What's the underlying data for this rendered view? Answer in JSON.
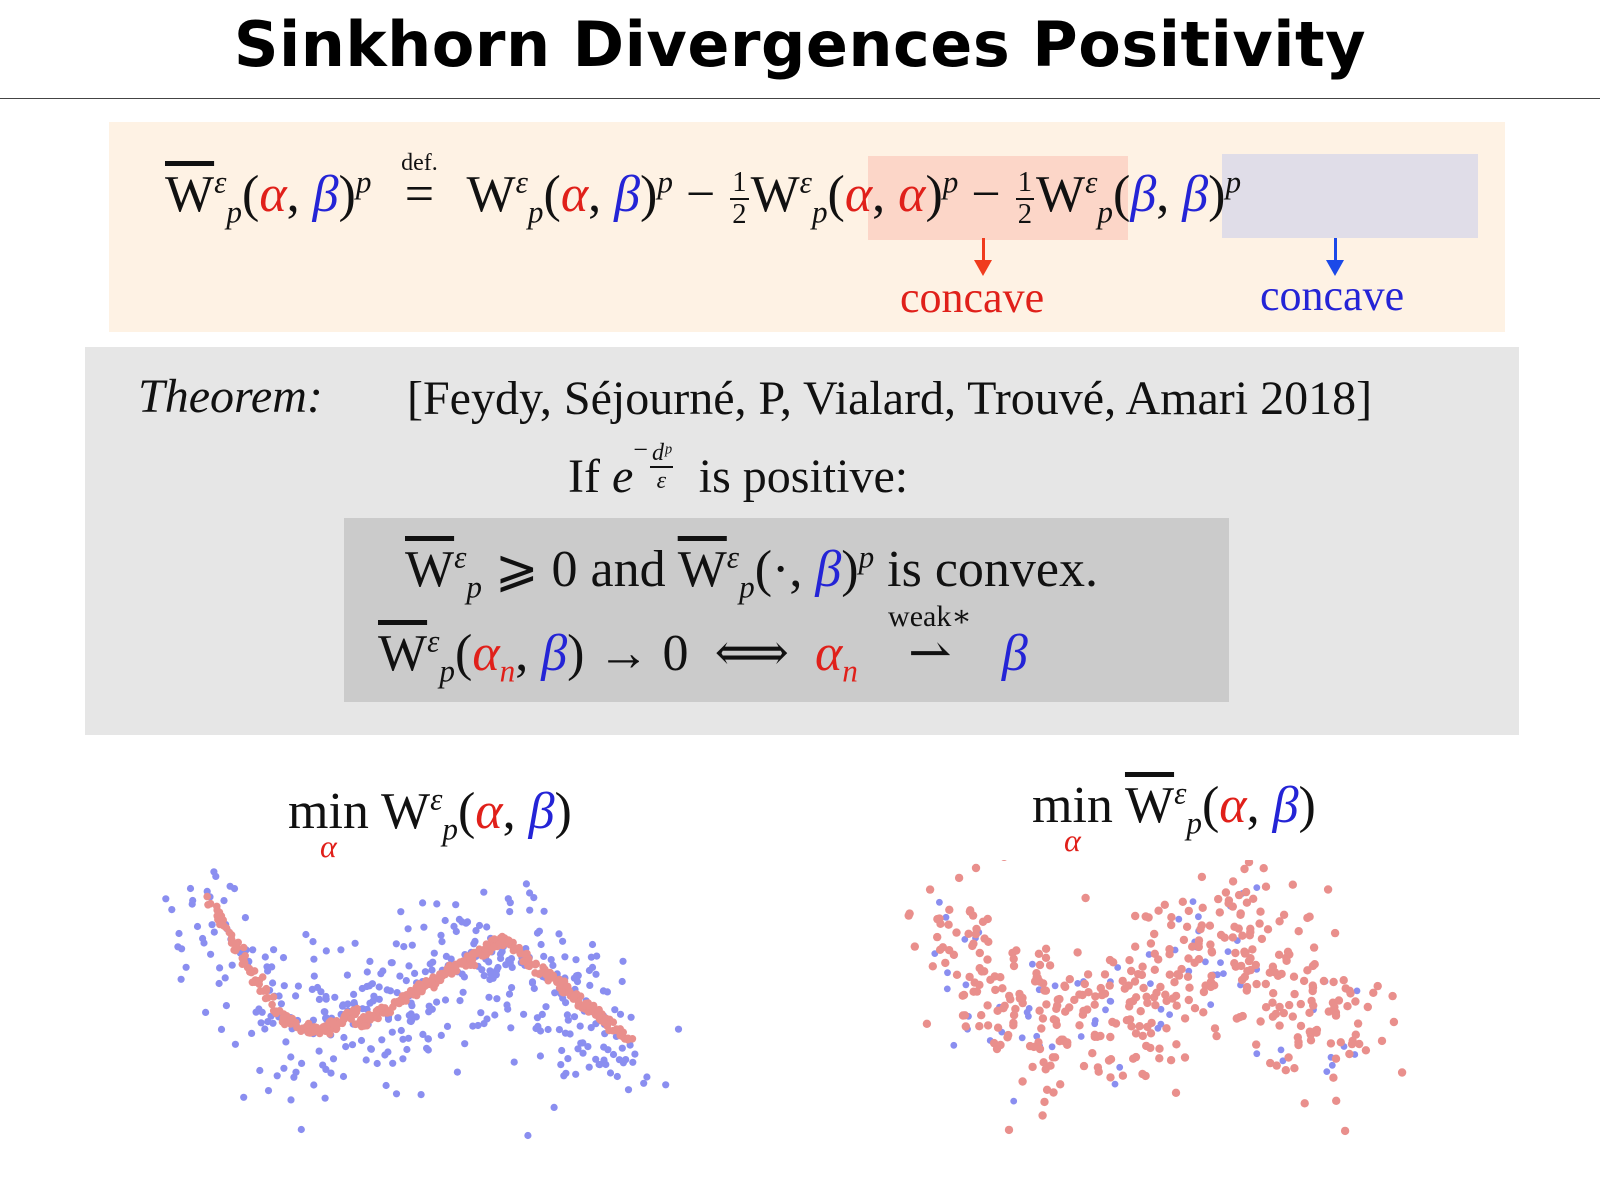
{
  "slide": {
    "title": "Sinkhorn Divergences Positivity"
  },
  "definition": {
    "lhs_symbol": "W",
    "eps": "ε",
    "sub_p": "p",
    "alpha": "α",
    "beta": "β",
    "comma": ",",
    "power_p": "p",
    "def_label": "def.",
    "eq": "=",
    "minus": "−",
    "half_num": "1",
    "half_den": "2",
    "concave_label_red": "concave",
    "concave_label_blue": "concave"
  },
  "theorem": {
    "label": "Theorem:",
    "citation": "[Feydy, Séjourné, P, Vialard, Trouvé, Amari 2018]",
    "condition_if": "If",
    "condition_e": "e",
    "condition_exp_num": "dᵖ",
    "condition_exp_den": "ε",
    "condition_rest": "is positive:",
    "line1_geq": "⩾ 0 and",
    "line1_dot": "(·,",
    "line1_rest": "is convex.",
    "line2_arrow": "→ 0",
    "line2_iff": "⟺",
    "alpha_n": "α",
    "sub_n": "n",
    "weak_label": "weak∗",
    "weak_arrow": "⇀"
  },
  "plots": {
    "left_min": "min",
    "left_min_sub": "α",
    "right_min": "min",
    "right_min_sub": "α",
    "colors": {
      "blue_points": "#8a8ef0",
      "red_points": "#e98f8c"
    }
  },
  "colors": {
    "alpha_red": "#e0201a",
    "beta_blue": "#2424d6",
    "arrow_red": "#f03c1e",
    "arrow_blue": "#1b49e8"
  }
}
